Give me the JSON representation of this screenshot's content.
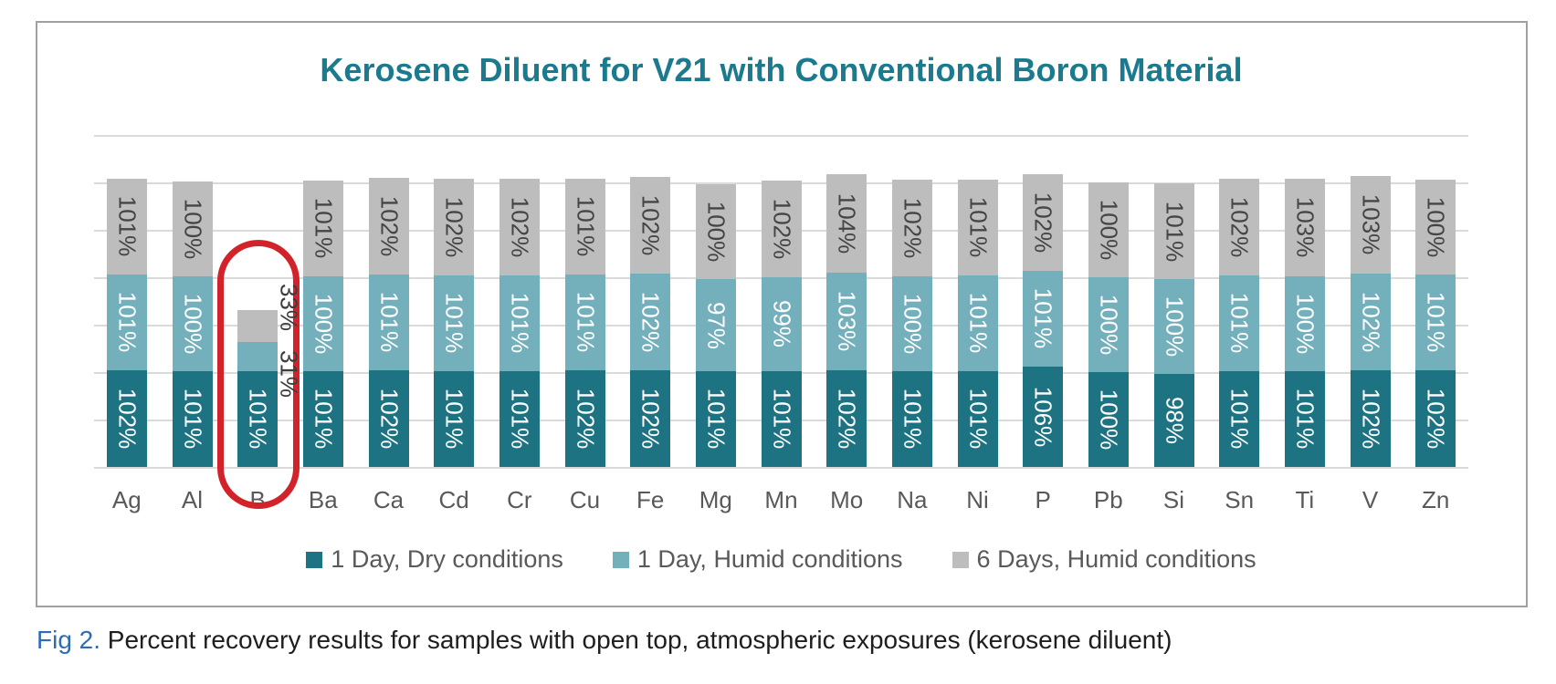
{
  "figure": {
    "title": "Kerosene Diluent for V21 with Conventional Boron Material",
    "caption_prefix": "Fig 2.",
    "caption_text": " Percent recovery results for samples with open top, atmospheric exposures (kerosene diluent)"
  },
  "colors": {
    "title": "#1C7A8E",
    "series": [
      "#1E7383",
      "#74AFBC",
      "#BDBDBD"
    ],
    "label_on_teal": "#FFFFFF",
    "label_on_gray": "#454545",
    "outside_label": "#3D3D3D",
    "axis_text": "#595959",
    "legend_text": "#595959",
    "gridline": "#DADADA",
    "highlight_red": "#D2232A",
    "caption_fig_blue": "#2E6DB5",
    "caption_text": "#1E1E1E",
    "frame_border": "#A0A0A0"
  },
  "chart_data": {
    "type": "bar",
    "stacked": true,
    "title": "Kerosene Diluent for V21 with Conventional Boron Material",
    "xlabel": "",
    "ylabel": "",
    "value_suffix": "%",
    "grid": true,
    "y_axis": {
      "visible": false,
      "min": 0,
      "max": 350,
      "grid_interval": 50
    },
    "legend_position": "bottom",
    "categories": [
      "Ag",
      "Al",
      "B",
      "Ba",
      "Ca",
      "Cd",
      "Cr",
      "Cu",
      "Fe",
      "Mg",
      "Mn",
      "Mo",
      "Na",
      "Ni",
      "P",
      "Pb",
      "Si",
      "Sn",
      "Ti",
      "V",
      "Zn"
    ],
    "series": [
      {
        "name": "1 Day, Dry conditions",
        "values": [
          102,
          101,
          101,
          101,
          102,
          101,
          101,
          102,
          102,
          101,
          101,
          102,
          101,
          101,
          106,
          100,
          98,
          101,
          101,
          102,
          102
        ]
      },
      {
        "name": "1 Day, Humid conditions",
        "values": [
          101,
          100,
          31,
          100,
          101,
          101,
          101,
          101,
          102,
          97,
          99,
          103,
          100,
          101,
          101,
          100,
          100,
          101,
          100,
          102,
          101
        ]
      },
      {
        "name": "6 Days, Humid conditions",
        "values": [
          101,
          100,
          33,
          101,
          102,
          102,
          102,
          101,
          102,
          100,
          102,
          104,
          102,
          101,
          102,
          100,
          101,
          102,
          103,
          103,
          100
        ]
      }
    ],
    "annotations": {
      "highlight_category": "B",
      "highlight_style": "red rounded rectangle outline",
      "outside_labels": [
        "31%",
        "33%"
      ]
    }
  }
}
